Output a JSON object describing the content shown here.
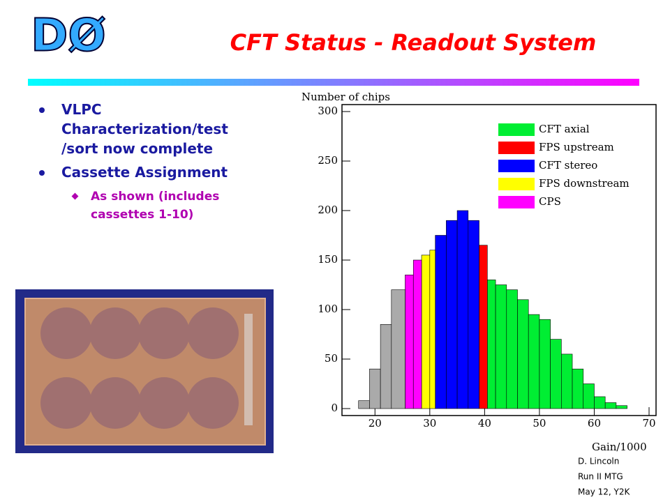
{
  "logo": "DØ",
  "title": "CFT Status - Readout System",
  "bullets": [
    {
      "text": "VLPC Characterization/test /sort now complete"
    },
    {
      "text": "Cassette Assignment",
      "sub": [
        "As shown (includes cassettes 1-10)"
      ]
    }
  ],
  "footer": [
    "D. Lincoln",
    "Run II MTG",
    "May 12, Y2K"
  ],
  "chart_data": {
    "type": "histogram",
    "y_label": "Number of chips",
    "x_label": "Gain/1000",
    "xlim": [
      15,
      70
    ],
    "xticks": [
      20,
      30,
      40,
      50,
      60,
      70
    ],
    "ylim": [
      0,
      300
    ],
    "yticks": [
      0,
      50,
      100,
      150,
      200,
      250,
      300
    ],
    "legend": "upper right",
    "series": [
      {
        "name": "CFT axial",
        "color": "#00ee33",
        "bins": [
          40.5,
          42,
          44,
          46,
          48,
          50,
          52,
          54,
          56,
          58,
          60,
          62,
          64,
          66
        ],
        "values": [
          130,
          125,
          120,
          110,
          95,
          90,
          70,
          55,
          40,
          25,
          12,
          6,
          3
        ]
      },
      {
        "name": "FPS upstream",
        "color": "#ff0000",
        "bins": [
          39,
          40.5
        ],
        "values": [
          165
        ]
      },
      {
        "name": "CFT stereo",
        "color": "#0000ff",
        "bins": [
          31,
          33,
          35,
          37,
          39
        ],
        "values": [
          175,
          190,
          200,
          190
        ]
      },
      {
        "name": "FPS downstream",
        "color": "#ffff00",
        "bins": [
          28.5,
          30,
          31
        ],
        "values": [
          155,
          160
        ]
      },
      {
        "name": "CPS",
        "color": "#ff00ff",
        "bins": [
          25.5,
          27,
          28.5
        ],
        "values": [
          135,
          150
        ]
      },
      {
        "color": "#aaaaaa",
        "bins": [
          17,
          19,
          21,
          23,
          25.5
        ],
        "values": [
          8,
          40,
          85,
          120
        ]
      }
    ]
  }
}
